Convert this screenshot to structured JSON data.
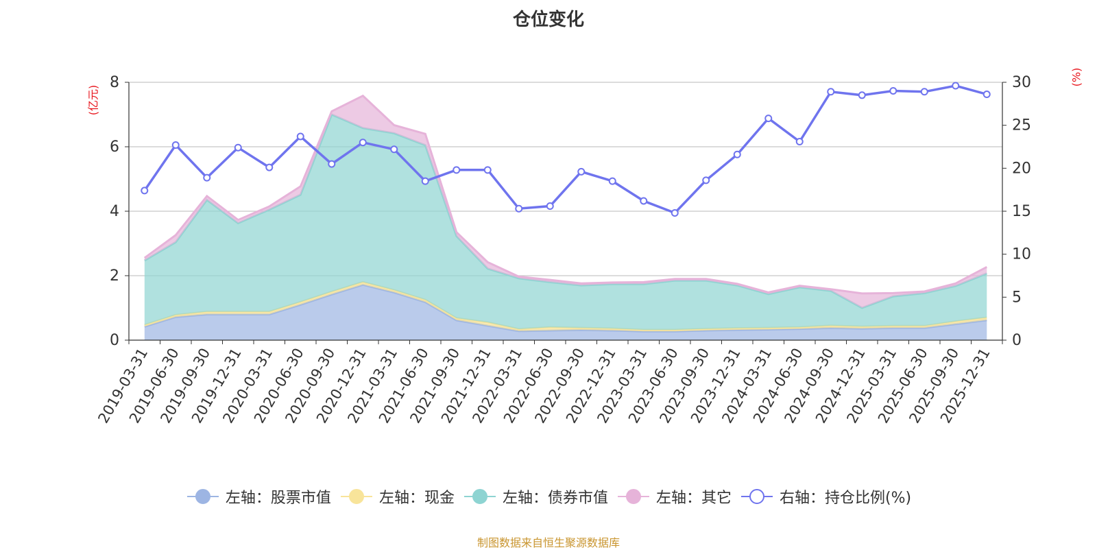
{
  "chart_data": {
    "type": "area",
    "title": "仓位变化",
    "left_axis_unit": "(亿元)",
    "right_axis_unit": "(%)",
    "ylim_left": [
      0,
      8
    ],
    "ylim_right": [
      0,
      30
    ],
    "yticks_left": [
      "0",
      "2",
      "4",
      "6",
      "8"
    ],
    "yticks_right": [
      "0",
      "5",
      "10",
      "15",
      "20",
      "25",
      "30"
    ],
    "categories": [
      "2019-03-31",
      "2019-06-30",
      "2019-09-30",
      "2019-12-31",
      "2020-03-31",
      "2020-06-30",
      "2020-09-30",
      "2020-12-31",
      "2021-03-31",
      "2021-06-30",
      "2021-09-30",
      "2021-12-31",
      "2022-03-31",
      "2022-06-30",
      "2022-09-30",
      "2022-12-31",
      "2023-03-31",
      "2023-06-30",
      "2023-09-30",
      "2023-12-31",
      "2024-03-31",
      "2024-06-30",
      "2024-09-30",
      "2024-12-31",
      "2025-03-31",
      "2025-06-30",
      "2025-09-30",
      "2025-12-31"
    ],
    "series": [
      {
        "name": "左轴：股票市值",
        "axis": "left",
        "stack": true,
        "color": "#9db5e3",
        "values": [
          0.42,
          0.72,
          0.8,
          0.8,
          0.8,
          1.1,
          1.42,
          1.72,
          1.48,
          1.18,
          0.62,
          0.45,
          0.28,
          0.3,
          0.32,
          0.3,
          0.27,
          0.27,
          0.3,
          0.32,
          0.33,
          0.35,
          0.38,
          0.36,
          0.38,
          0.38,
          0.5,
          0.62
        ]
      },
      {
        "name": "左轴：现金",
        "axis": "left",
        "stack": true,
        "color": "#f8e49a",
        "values": [
          0.05,
          0.06,
          0.08,
          0.08,
          0.08,
          0.08,
          0.08,
          0.08,
          0.07,
          0.07,
          0.06,
          0.1,
          0.06,
          0.1,
          0.06,
          0.06,
          0.05,
          0.05,
          0.05,
          0.05,
          0.05,
          0.05,
          0.07,
          0.06,
          0.06,
          0.06,
          0.08,
          0.08
        ]
      },
      {
        "name": "左轴：债券市值",
        "axis": "left",
        "stack": true,
        "color": "#8ed4d2",
        "values": [
          2.0,
          2.26,
          3.47,
          2.75,
          3.17,
          3.33,
          5.5,
          4.78,
          4.87,
          4.8,
          2.55,
          1.67,
          1.58,
          1.4,
          1.32,
          1.38,
          1.42,
          1.53,
          1.5,
          1.33,
          1.05,
          1.24,
          1.08,
          0.58,
          0.92,
          1.02,
          1.1,
          1.37
        ]
      },
      {
        "name": "左轴：其它",
        "axis": "left",
        "stack": true,
        "color": "#e6b3d9",
        "values": [
          0.08,
          0.22,
          0.12,
          0.1,
          0.1,
          0.26,
          0.1,
          1.0,
          0.25,
          0.35,
          0.12,
          0.2,
          0.05,
          0.07,
          0.06,
          0.05,
          0.06,
          0.05,
          0.05,
          0.05,
          0.05,
          0.05,
          0.05,
          0.45,
          0.1,
          0.05,
          0.08,
          0.2
        ]
      },
      {
        "name": "右轴：持仓比例(%)",
        "axis": "right",
        "stack": false,
        "color": "#6f74ee",
        "values": [
          17.4,
          22.7,
          18.9,
          22.4,
          20.1,
          23.7,
          20.5,
          23.0,
          22.2,
          18.5,
          19.8,
          19.8,
          15.3,
          15.6,
          19.6,
          18.5,
          16.2,
          14.8,
          18.6,
          21.6,
          25.8,
          23.1,
          28.9,
          28.5,
          29.0,
          28.9,
          29.6,
          28.6
        ]
      }
    ]
  },
  "legend": [
    {
      "label": "左轴：股票市值",
      "color": "#9db5e3",
      "shape": "filled"
    },
    {
      "label": "左轴：现金",
      "color": "#f8e49a",
      "shape": "filled"
    },
    {
      "label": "左轴：债券市值",
      "color": "#8ed4d2",
      "shape": "filled"
    },
    {
      "label": "左轴：其它",
      "color": "#e6b3d9",
      "shape": "filled"
    },
    {
      "label": "右轴：持仓比例(%)",
      "color": "#6f74ee",
      "shape": "hollow"
    }
  ],
  "source": "制图数据来自恒生聚源数据库"
}
